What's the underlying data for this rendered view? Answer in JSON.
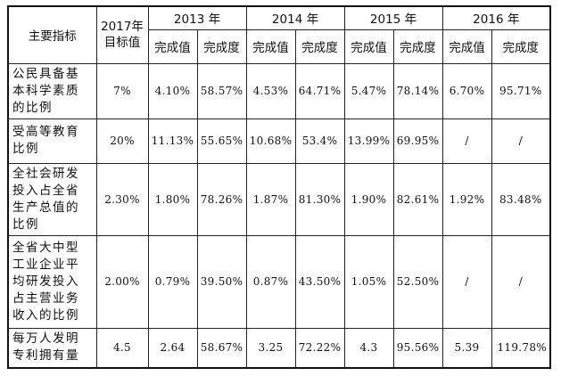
{
  "table": {
    "header": {
      "indicator": "主要指标",
      "target": "2017年目标值",
      "years": [
        "2013 年",
        "2014 年",
        "2015 年",
        "2016 年"
      ],
      "sub": [
        "完成值",
        "完成度"
      ]
    },
    "rows": [
      {
        "indicator": "公民具备基本科学素质的比例",
        "target": "7%",
        "values": [
          "4.10%",
          "58.57%",
          "4.53%",
          "64.71%",
          "5.47%",
          "78.14%",
          "6.70%",
          "95.71%"
        ]
      },
      {
        "indicator": "受高等教育比例",
        "target": "20%",
        "values": [
          "11.13%",
          "55.65%",
          "10.68%",
          "53.4%",
          "13.99%",
          "69.95%",
          "/",
          "/"
        ]
      },
      {
        "indicator": "全社会研发投入占全省生产总值的比例",
        "target": "2.30%",
        "values": [
          "1.80%",
          "78.26%",
          "1.87%",
          "81.30%",
          "1.90%",
          "82.61%",
          "1.92%",
          "83.48%"
        ]
      },
      {
        "indicator": "全省大中型工业企业平均研发投入占主营业务收入的比例",
        "target": "2.00%",
        "values": [
          "0.79%",
          "39.50%",
          "0.87%",
          "43.50%",
          "1.05%",
          "52.50%",
          "/",
          "/"
        ]
      },
      {
        "indicator": "每万人发明专利拥有量",
        "target": "4.5",
        "values": [
          "2.64",
          "58.67%",
          "3.25",
          "72.22%",
          "4.3",
          "95.56%",
          "5.39",
          "119.78%"
        ]
      }
    ]
  }
}
